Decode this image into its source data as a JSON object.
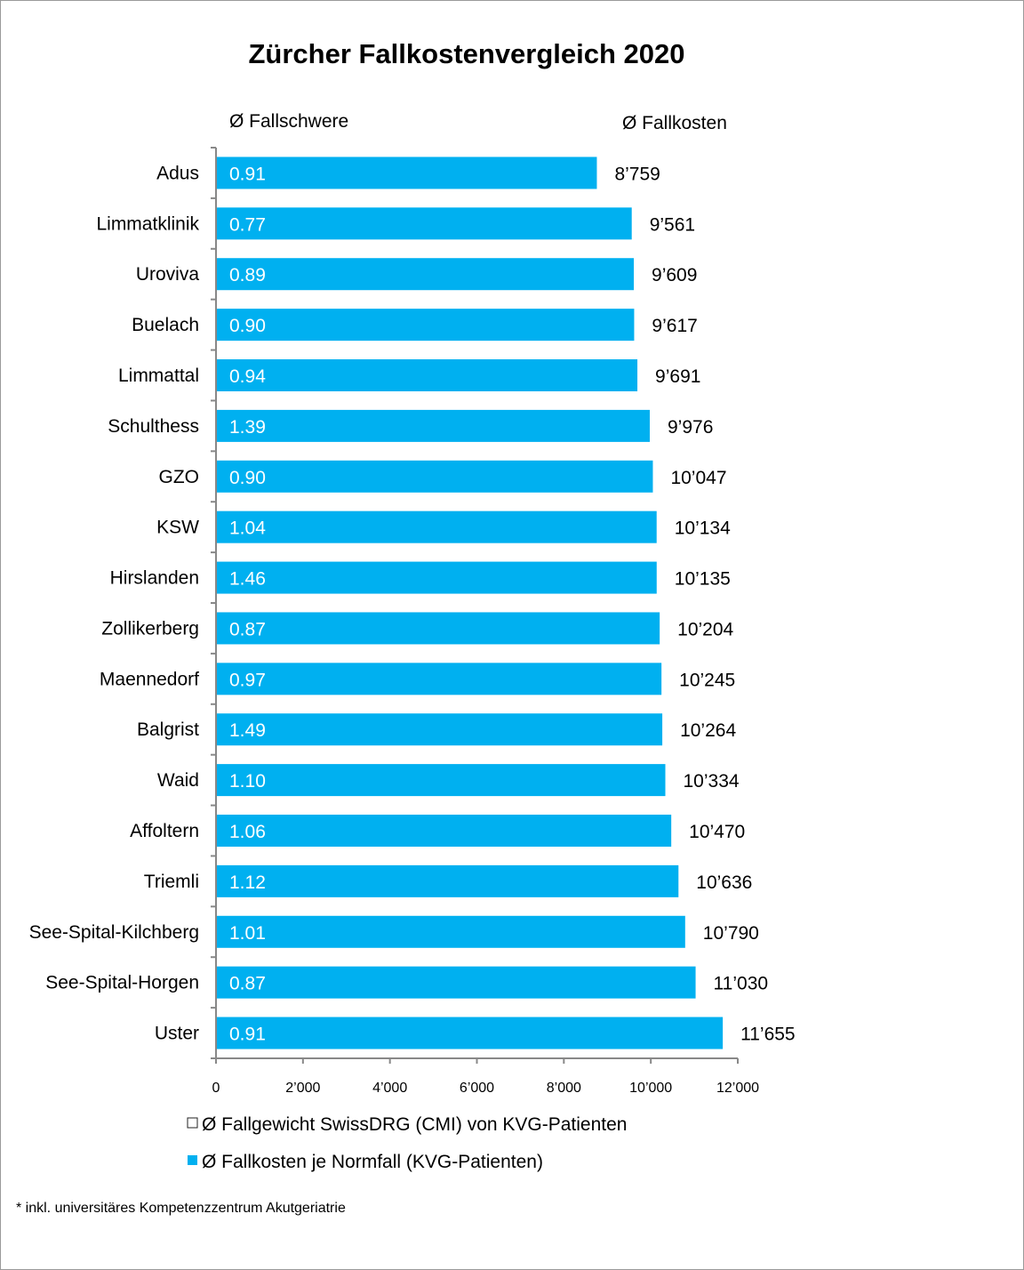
{
  "chart_data": {
    "type": "bar",
    "orientation": "horizontal",
    "title": "Zürcher Fallkostenvergleich 2020",
    "column_headers": {
      "left": "Ø Fallschwere",
      "right": "Ø Fallkosten"
    },
    "categories": [
      "Adus",
      "Limmatklinik",
      "Uroviva",
      "Buelach",
      "Limmattal",
      "Schulthess",
      "GZO",
      "KSW",
      "Hirslanden",
      "Zollikerberg",
      "Maennedorf",
      "Balgrist",
      "Waid",
      "Affoltern",
      "Triemli",
      "See-Spital-Kilchberg",
      "See-Spital-Horgen",
      "Uster"
    ],
    "series": [
      {
        "name": "Ø Fallkosten je Normfall (KVG-Patienten)",
        "color": "#00B0F0",
        "values": [
          8759,
          9561,
          9609,
          9617,
          9691,
          9976,
          10047,
          10134,
          10135,
          10204,
          10245,
          10264,
          10334,
          10470,
          10636,
          10790,
          11030,
          11655
        ],
        "labels": [
          "8’759",
          "9’561",
          "9’609",
          "9’617",
          "9’691",
          "9’976",
          "10’047",
          "10’134",
          "10’135",
          "10’204",
          "10’245",
          "10’264",
          "10’334",
          "10’470",
          "10’636",
          "10’790",
          "11’030",
          "11’655"
        ]
      },
      {
        "name": "Ø Fallgewicht SwissDRG (CMI) von KVG-Patienten",
        "color": "#FFFFFF",
        "labels": [
          "0.91",
          "0.77",
          "0.89",
          "0.90",
          "0.94",
          "1.39",
          "0.90",
          "1.04",
          "1.46",
          "0.87",
          "0.97",
          "1.49",
          "1.10",
          "1.06",
          "1.12",
          "1.01",
          "0.87",
          "0.91"
        ]
      }
    ],
    "xlim": [
      0,
      12000
    ],
    "xticks": [
      0,
      2000,
      4000,
      6000,
      8000,
      10000,
      12000
    ],
    "xtick_labels": [
      "0",
      "2’000",
      "4’000",
      "6’000",
      "8’000",
      "10’000",
      "12’000"
    ],
    "grid": false,
    "legend_placement": "bottom"
  },
  "footnote": "* inkl. universitäres  Kompetenzzentrum Akutgeriatrie"
}
